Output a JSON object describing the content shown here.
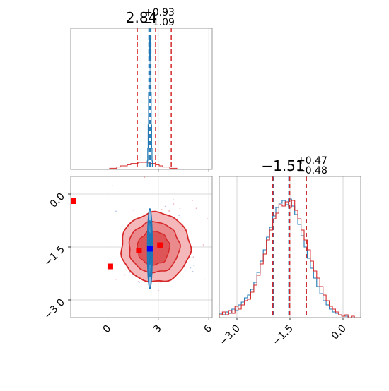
{
  "chart_data": {
    "type": "corner",
    "parameters": [
      {
        "title": {
          "median": "2.84",
          "upper": "+0.93",
          "lower": "−1.09"
        },
        "x_ticks": [
          "0",
          "3",
          "6"
        ],
        "x_range": [
          -2.2,
          6.2
        ],
        "quantiles_red": [
          1.75,
          2.84,
          3.77
        ],
        "quantiles_blue": [
          2.44,
          2.5,
          2.56
        ]
      },
      {
        "title": {
          "median": "−1.51",
          "upper": "+0.47",
          "lower": "−0.48"
        },
        "x_ticks": [
          "−3.0",
          "−1.5",
          "0.0"
        ],
        "x_range": [
          -3.5,
          0.5
        ],
        "quantiles_red": [
          -1.99,
          -1.51,
          -1.04
        ],
        "quantiles_blue": [
          -1.99,
          -1.55,
          -1.06
        ]
      }
    ],
    "joint": {
      "y_ticks": [
        "0.0",
        "−1.5",
        "−3.0"
      ],
      "y_range": [
        -3.5,
        0.5
      ],
      "red_center": [
        2.84,
        -1.51
      ],
      "red_sigma": [
        1.0,
        0.48
      ],
      "blue_center": [
        2.5,
        -1.55
      ],
      "blue_sigma": [
        0.06,
        0.42
      ],
      "red_markers": [
        [
          -2.05,
          -0.2
        ],
        [
          0.15,
          -2.05
        ],
        [
          1.85,
          -1.6
        ],
        [
          3.1,
          -1.45
        ]
      ],
      "blue_marker": [
        2.5,
        -1.55
      ]
    },
    "marginal_x_red": [
      0,
      0,
      0,
      0,
      0,
      0,
      0,
      0,
      0,
      0,
      0,
      1,
      1,
      2,
      3,
      3,
      4,
      5,
      5,
      6,
      6,
      6,
      5,
      5,
      4,
      3,
      2,
      2,
      1,
      1,
      0,
      0,
      0,
      0,
      0,
      0,
      0,
      0,
      0,
      0
    ],
    "marginal_y_red": [
      2,
      4,
      2,
      5,
      3,
      8,
      6,
      9,
      12,
      13,
      18,
      23,
      30,
      38,
      45,
      55,
      62,
      70,
      74,
      80,
      79,
      82,
      78,
      83,
      76,
      70,
      62,
      55,
      48,
      40,
      33,
      28,
      22,
      16,
      12,
      8,
      6,
      4,
      2,
      1,
      2,
      0,
      1,
      0,
      0
    ],
    "marginal_y_blue": [
      3,
      2,
      4,
      3,
      6,
      5,
      9,
      11,
      14,
      16,
      20,
      25,
      32,
      40,
      48,
      57,
      64,
      72,
      78,
      81,
      83,
      80,
      84,
      79,
      73,
      66,
      58,
      50,
      42,
      35,
      28,
      22,
      17,
      12,
      9,
      6,
      4,
      3,
      2,
      1,
      1,
      0,
      0,
      0,
      0
    ],
    "colors": {
      "red": "#d62728",
      "blue": "#1f77b4",
      "marker_blue": "#0000ff",
      "marker_red": "#ff0000"
    }
  }
}
